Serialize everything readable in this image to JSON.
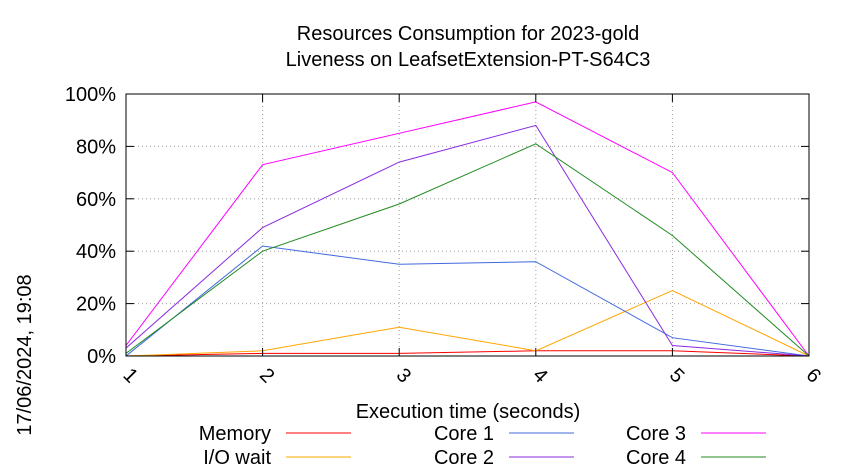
{
  "chart_data": {
    "type": "line",
    "title": [
      "Resources Consumption for 2023-gold",
      "Liveness on LeafsetExtension-PT-S64C3"
    ],
    "xlabel": "Execution time (seconds)",
    "ylabel": "",
    "side_label": "17/06/2024, 19:08",
    "x": [
      1,
      2,
      3,
      4,
      5,
      6
    ],
    "x_tick_labels": [
      "1",
      "2",
      "3",
      "4",
      "5",
      "6"
    ],
    "xlim": [
      1,
      6
    ],
    "ylim": [
      0,
      100
    ],
    "y_ticks": [
      0,
      20,
      40,
      60,
      80,
      100
    ],
    "y_tick_labels": [
      "0%",
      "20%",
      "40%",
      "60%",
      "80%",
      "100%"
    ],
    "grid": true,
    "legend_position": "bottom",
    "series": [
      {
        "name": "Memory",
        "color": "#ff0000",
        "values": [
          0,
          1,
          1,
          2,
          2,
          0
        ]
      },
      {
        "name": "I/O wait",
        "color": "#ffa500",
        "values": [
          0,
          2,
          11,
          2,
          25,
          0
        ]
      },
      {
        "name": "Core 1",
        "color": "#4169e1",
        "values": [
          0,
          42,
          35,
          36,
          7,
          0
        ]
      },
      {
        "name": "Core 2",
        "color": "#8a2be2",
        "values": [
          3,
          49,
          74,
          88,
          4,
          0
        ]
      },
      {
        "name": "Core 3",
        "color": "#ff00ff",
        "values": [
          4,
          73,
          85,
          97,
          70,
          0
        ]
      },
      {
        "name": "Core 4",
        "color": "#228b22",
        "values": [
          1,
          40,
          58,
          81,
          46,
          0
        ]
      }
    ]
  }
}
